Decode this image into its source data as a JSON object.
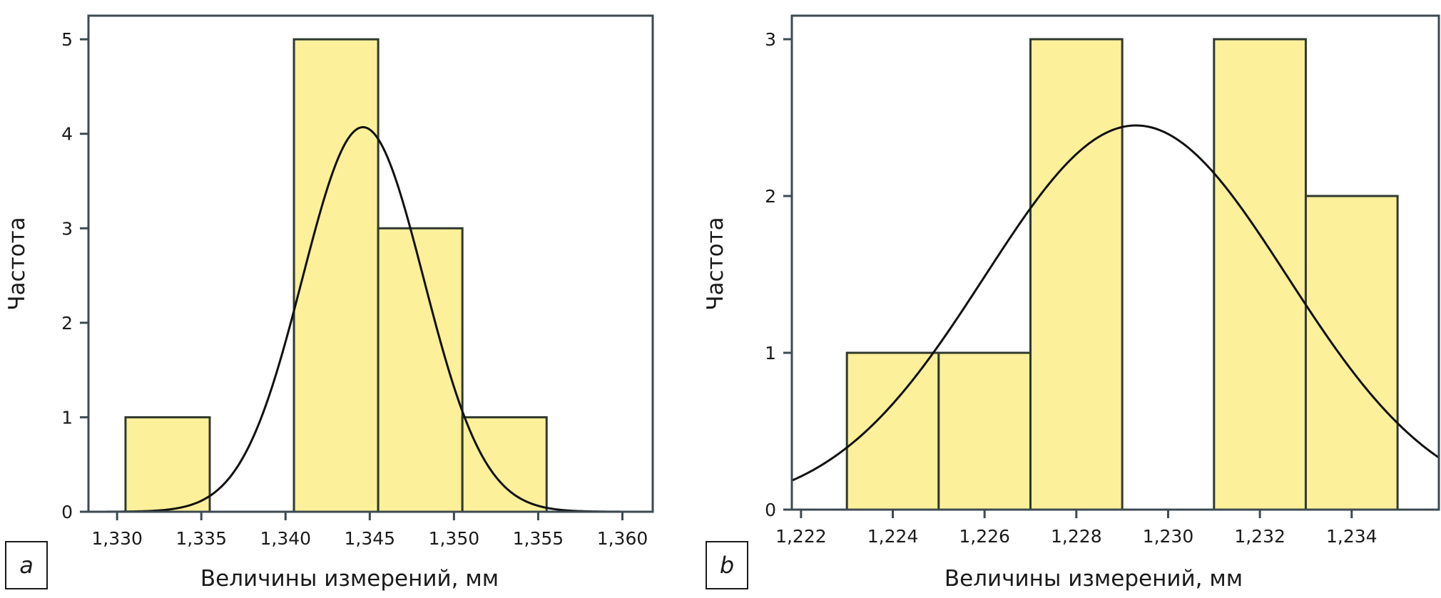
{
  "colors": {
    "bar_fill": "#fdf09a",
    "bar_stroke": "#2f3a2f",
    "frame": "#3d4a50",
    "curve": "#111111"
  },
  "chart_data": [
    {
      "id": "a",
      "type": "bar",
      "subtype": "histogram-with-normal-curve",
      "panel_label": "a",
      "title": "",
      "xlabel": "Величины измерений, мм",
      "ylabel": "Частота",
      "xlim": [
        1.3283,
        1.3618
      ],
      "ylim": [
        0,
        5.25
      ],
      "x_ticks": [
        1.33,
        1.335,
        1.34,
        1.345,
        1.35,
        1.355,
        1.36
      ],
      "x_tick_labels": [
        "1,330",
        "1,335",
        "1,340",
        "1,345",
        "1,350",
        "1,355",
        "1,360"
      ],
      "y_ticks": [
        0,
        1,
        2,
        3,
        4,
        5
      ],
      "y_tick_labels": [
        "0",
        "1",
        "2",
        "3",
        "4",
        "5"
      ],
      "bins": [
        {
          "x0": 1.3305,
          "x1": 1.3355,
          "count": 1
        },
        {
          "x0": 1.3405,
          "x1": 1.3455,
          "count": 5
        },
        {
          "x0": 1.3455,
          "x1": 1.3505,
          "count": 3
        },
        {
          "x0": 1.3505,
          "x1": 1.3555,
          "count": 1
        }
      ],
      "normal_curve": {
        "mean": 1.3446,
        "sd": 0.0036,
        "peak": 4.07
      },
      "grid": false,
      "legend": "none"
    },
    {
      "id": "b",
      "type": "bar",
      "subtype": "histogram-with-normal-curve",
      "panel_label": "b",
      "title": "",
      "xlabel": "Величины измерений, мм",
      "ylabel": "Частота",
      "xlim": [
        1.2218,
        1.2359
      ],
      "ylim": [
        0,
        3.15
      ],
      "x_ticks": [
        1.222,
        1.224,
        1.226,
        1.228,
        1.23,
        1.232,
        1.234
      ],
      "x_tick_labels": [
        "1,222",
        "1,224",
        "1,226",
        "1,228",
        "1,230",
        "1,232",
        "1,234"
      ],
      "y_ticks": [
        0,
        1,
        2,
        3
      ],
      "y_tick_labels": [
        "0",
        "1",
        "2",
        "3"
      ],
      "bins": [
        {
          "x0": 1.223,
          "x1": 1.225,
          "count": 1
        },
        {
          "x0": 1.225,
          "x1": 1.227,
          "count": 1
        },
        {
          "x0": 1.227,
          "x1": 1.229,
          "count": 3
        },
        {
          "x0": 1.231,
          "x1": 1.233,
          "count": 3
        },
        {
          "x0": 1.233,
          "x1": 1.235,
          "count": 2
        }
      ],
      "normal_curve": {
        "mean": 1.2293,
        "sd": 0.0033,
        "peak": 2.45
      },
      "grid": false,
      "legend": "none"
    }
  ]
}
